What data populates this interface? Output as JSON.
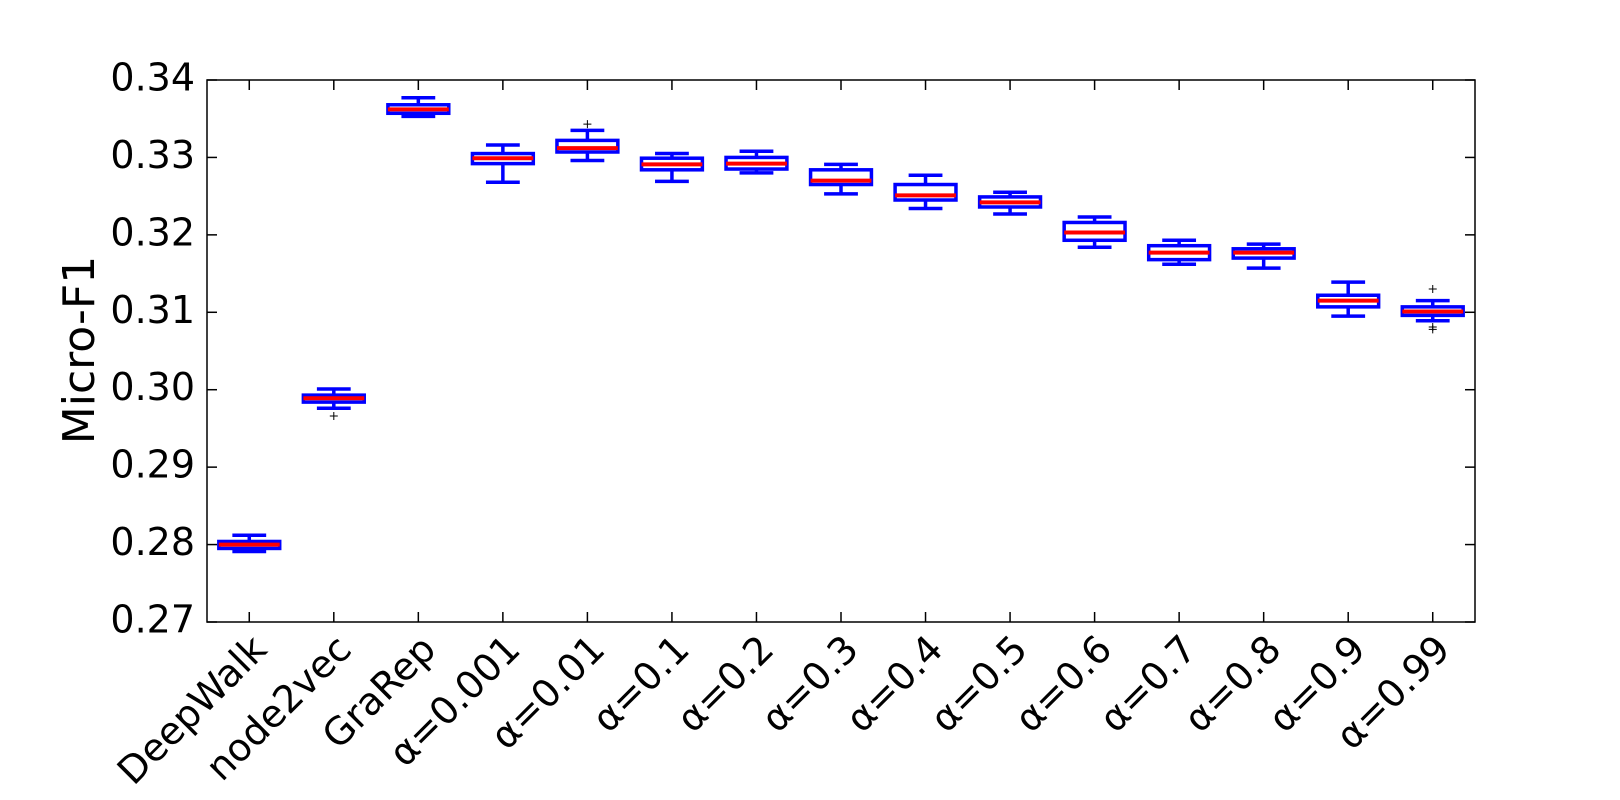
{
  "chart_data": {
    "type": "box",
    "ylabel": "Micro-F1",
    "categories": [
      "DeepWalk",
      "node2vec",
      "GraRep",
      "α=0.001",
      "α=0.01",
      "α=0.1",
      "α=0.2",
      "α=0.3",
      "α=0.4",
      "α=0.5",
      "α=0.6",
      "α=0.7",
      "α=0.8",
      "α=0.9",
      "α=0.99"
    ],
    "boxes": [
      {
        "min": 0.2791,
        "q1": 0.2795,
        "median": 0.28,
        "q3": 0.2804,
        "max": 0.2812,
        "outliers": []
      },
      {
        "min": 0.2976,
        "q1": 0.2984,
        "median": 0.2989,
        "q3": 0.2993,
        "max": 0.3001,
        "outliers": [
          0.2966
        ]
      },
      {
        "min": 0.3353,
        "q1": 0.3357,
        "median": 0.3362,
        "q3": 0.3368,
        "max": 0.3377,
        "outliers": []
      },
      {
        "min": 0.3268,
        "q1": 0.3292,
        "median": 0.3299,
        "q3": 0.3305,
        "max": 0.3316,
        "outliers": []
      },
      {
        "min": 0.3296,
        "q1": 0.3307,
        "median": 0.3312,
        "q3": 0.3322,
        "max": 0.3335,
        "outliers": [
          0.3343
        ]
      },
      {
        "min": 0.3269,
        "q1": 0.3284,
        "median": 0.3291,
        "q3": 0.3299,
        "max": 0.3305,
        "outliers": []
      },
      {
        "min": 0.328,
        "q1": 0.3285,
        "median": 0.3292,
        "q3": 0.33,
        "max": 0.3308,
        "outliers": []
      },
      {
        "min": 0.3253,
        "q1": 0.3265,
        "median": 0.327,
        "q3": 0.3284,
        "max": 0.3291,
        "outliers": []
      },
      {
        "min": 0.3234,
        "q1": 0.3245,
        "median": 0.3251,
        "q3": 0.3265,
        "max": 0.3277,
        "outliers": []
      },
      {
        "min": 0.3227,
        "q1": 0.3236,
        "median": 0.3242,
        "q3": 0.3249,
        "max": 0.3255,
        "outliers": []
      },
      {
        "min": 0.3184,
        "q1": 0.3193,
        "median": 0.3203,
        "q3": 0.3216,
        "max": 0.3223,
        "outliers": []
      },
      {
        "min": 0.3162,
        "q1": 0.3168,
        "median": 0.3177,
        "q3": 0.3186,
        "max": 0.3193,
        "outliers": []
      },
      {
        "min": 0.3157,
        "q1": 0.317,
        "median": 0.3177,
        "q3": 0.3182,
        "max": 0.3188,
        "outliers": []
      },
      {
        "min": 0.3095,
        "q1": 0.3107,
        "median": 0.3115,
        "q3": 0.3122,
        "max": 0.3139,
        "outliers": []
      },
      {
        "min": 0.3089,
        "q1": 0.3096,
        "median": 0.3101,
        "q3": 0.3107,
        "max": 0.3115,
        "outliers": [
          0.313,
          0.3081,
          0.3078
        ]
      }
    ],
    "box_color": "#0000ff",
    "median_color": "#ff0000",
    "ylim": [
      0.27,
      0.34
    ],
    "yticks": [
      0.27,
      0.28,
      0.29,
      {
        "value": 0.3,
        "label": "0.30"
      },
      0.31,
      0.32,
      0.33,
      0.34
    ]
  }
}
